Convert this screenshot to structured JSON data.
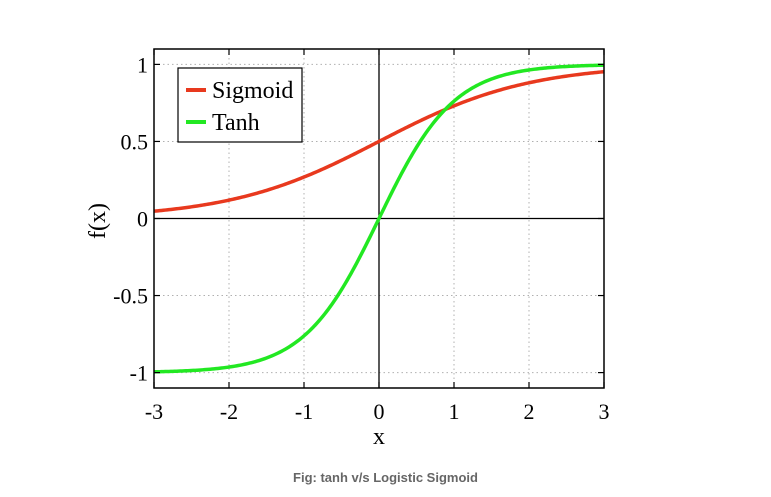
{
  "caption": "Fig: tanh v/s Logistic Sigmoid",
  "chart_data": {
    "type": "line",
    "title": "",
    "xlabel": "x",
    "ylabel": "f(x)",
    "xlim": [
      -3,
      3
    ],
    "ylim": [
      -1.1,
      1.1
    ],
    "xticks": [
      -3,
      -2,
      -1,
      0,
      1,
      2,
      3
    ],
    "xtick_labels": [
      "-3",
      "-2",
      "-1",
      "0",
      "1",
      "2",
      "3"
    ],
    "yticks": [
      -1,
      -0.5,
      0,
      0.5,
      1
    ],
    "ytick_labels": [
      "-1",
      "-0.5",
      "0",
      "0.5",
      "1"
    ],
    "grid": true,
    "legend": "top-left",
    "x": [
      -3,
      -2.5,
      -2,
      -1.5,
      -1,
      -0.5,
      0,
      0.5,
      1,
      1.5,
      2,
      2.5,
      3
    ],
    "series": [
      {
        "name": "Sigmoid",
        "color": "#e8391e",
        "values": [
          0.047,
          0.076,
          0.119,
          0.182,
          0.269,
          0.378,
          0.5,
          0.622,
          0.731,
          0.818,
          0.881,
          0.924,
          0.953
        ]
      },
      {
        "name": "Tanh",
        "color": "#22e822",
        "values": [
          -0.995,
          -0.987,
          -0.964,
          -0.905,
          -0.762,
          -0.462,
          0,
          0.462,
          0.762,
          0.905,
          0.964,
          0.987,
          0.995
        ]
      }
    ]
  }
}
